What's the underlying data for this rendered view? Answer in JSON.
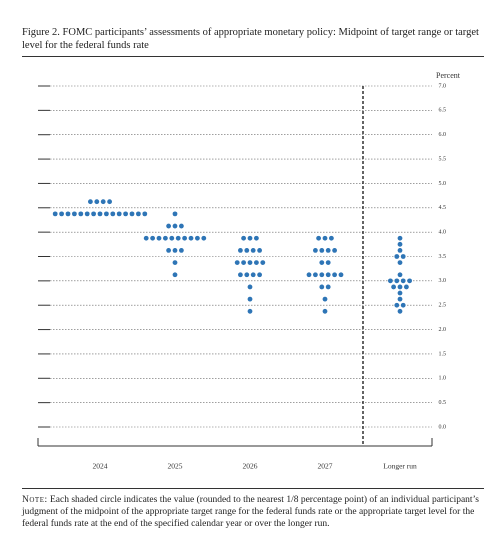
{
  "chart_data": {
    "type": "dotplot",
    "title": "Figure 2. FOMC participants’ assessments of appropriate monetary policy: Midpoint of target range or target level for the federal funds rate",
    "y_label": "Percent",
    "categories": [
      "2024",
      "2025",
      "2026",
      "2027",
      "Longer run"
    ],
    "color": "#2e75b6",
    "ylim": [
      0,
      7
    ],
    "yticks": [
      {
        "value": 7,
        "label": "7.0"
      },
      {
        "value": 6.5,
        "label": "6.5"
      },
      {
        "value": 6,
        "label": "6.0"
      },
      {
        "value": 5.5,
        "label": "5.5"
      },
      {
        "value": 5,
        "label": "5.0"
      },
      {
        "value": 4.5,
        "label": "4.5"
      },
      {
        "value": 4,
        "label": "4.0"
      },
      {
        "value": 3.5,
        "label": "3.5"
      },
      {
        "value": 3,
        "label": "3.0"
      },
      {
        "value": 2.5,
        "label": "2.5"
      },
      {
        "value": 2,
        "label": "2.0"
      },
      {
        "value": 1.5,
        "label": "1.5"
      },
      {
        "value": 1,
        "label": "1.0"
      },
      {
        "value": 0.5,
        "label": "0.5"
      },
      {
        "value": 0,
        "label": "0.0"
      }
    ],
    "grid": true,
    "dots": [
      [
        {
          "rate": 4.625,
          "count": 4
        },
        {
          "rate": 4.375,
          "count": 15
        }
      ],
      [
        {
          "rate": 4.375,
          "count": 1
        },
        {
          "rate": 4.125,
          "count": 3
        },
        {
          "rate": 3.875,
          "count": 10
        },
        {
          "rate": 3.625,
          "count": 3
        },
        {
          "rate": 3.375,
          "count": 1
        },
        {
          "rate": 3.125,
          "count": 1
        }
      ],
      [
        {
          "rate": 3.875,
          "count": 3
        },
        {
          "rate": 3.625,
          "count": 4
        },
        {
          "rate": 3.375,
          "count": 5
        },
        {
          "rate": 3.125,
          "count": 4
        },
        {
          "rate": 2.875,
          "count": 1
        },
        {
          "rate": 2.625,
          "count": 1
        },
        {
          "rate": 2.375,
          "count": 1
        }
      ],
      [
        {
          "rate": 3.875,
          "count": 3
        },
        {
          "rate": 3.625,
          "count": 4
        },
        {
          "rate": 3.375,
          "count": 2
        },
        {
          "rate": 3.125,
          "count": 6
        },
        {
          "rate": 2.875,
          "count": 2
        },
        {
          "rate": 2.625,
          "count": 1
        },
        {
          "rate": 2.375,
          "count": 1
        }
      ],
      [
        {
          "rate": 3.875,
          "count": 1
        },
        {
          "rate": 3.75,
          "count": 1
        },
        {
          "rate": 3.625,
          "count": 1
        },
        {
          "rate": 3.5,
          "count": 2
        },
        {
          "rate": 3.375,
          "count": 1
        },
        {
          "rate": 3.125,
          "count": 1
        },
        {
          "rate": 3.0,
          "count": 4
        },
        {
          "rate": 2.875,
          "count": 3
        },
        {
          "rate": 2.75,
          "count": 1
        },
        {
          "rate": 2.625,
          "count": 1
        },
        {
          "rate": 2.5,
          "count": 2
        },
        {
          "rate": 2.375,
          "count": 1
        }
      ]
    ],
    "note_lead": "Note:",
    "note": "Each shaded circle indicates the value (rounded to the nearest 1/8 percentage point) of an individual participant’s judgment of the midpoint of the appropriate target range for the federal funds rate or the appropriate target level for the federal funds rate at the end of the specified calendar year or over the longer run."
  }
}
